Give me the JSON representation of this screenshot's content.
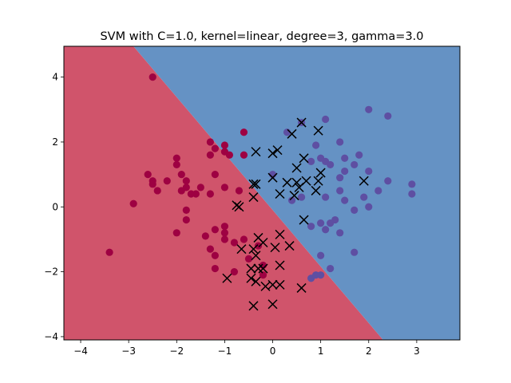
{
  "chart_data": {
    "type": "scatter",
    "title": "SVM with C=1.0, kernel=linear, degree=3, gamma=3.0",
    "xlabel": "",
    "ylabel": "",
    "xlim": [
      -4.35,
      3.9
    ],
    "ylim": [
      -4.1,
      4.95
    ],
    "xticks": [
      -4,
      -3,
      -2,
      -1,
      0,
      1,
      2,
      3
    ],
    "yticks": [
      -4,
      -2,
      0,
      2,
      4
    ],
    "grid": false,
    "colors": {
      "region_class0": "#d0546b",
      "region_class1": "#6592c4",
      "point_class0": "#9e0142",
      "point_class1": "#5e4fa2",
      "support_vector_marker": "#000000"
    },
    "decision_boundary": [
      [
        -2.9,
        4.95
      ],
      [
        2.3,
        -4.1
      ]
    ],
    "series": [
      {
        "class": 0,
        "points": [
          [
            -2.5,
            4.0
          ],
          [
            -0.6,
            2.3
          ],
          [
            -1.3,
            2.0
          ],
          [
            -1.2,
            1.8
          ],
          [
            -1.0,
            1.9
          ],
          [
            -1.0,
            1.7
          ],
          [
            -1.3,
            1.6
          ],
          [
            -0.9,
            1.6
          ],
          [
            -0.6,
            1.6
          ],
          [
            -2.0,
            1.5
          ],
          [
            -2.0,
            1.3
          ],
          [
            -2.6,
            1.0
          ],
          [
            -1.9,
            1.0
          ],
          [
            -1.2,
            1.0
          ],
          [
            -2.5,
            0.8
          ],
          [
            -2.2,
            0.8
          ],
          [
            -1.8,
            0.8
          ],
          [
            -1.8,
            0.6
          ],
          [
            -2.5,
            0.7
          ],
          [
            -2.4,
            0.5
          ],
          [
            -1.9,
            0.5
          ],
          [
            -1.7,
            0.4
          ],
          [
            -1.5,
            0.6
          ],
          [
            -1.3,
            0.4
          ],
          [
            -1.0,
            0.6
          ],
          [
            -1.6,
            0.4
          ],
          [
            -0.7,
            0.5
          ],
          [
            -2.9,
            0.1
          ],
          [
            -1.8,
            -0.1
          ],
          [
            -1.8,
            -0.4
          ],
          [
            -1.2,
            -0.7
          ],
          [
            -1.0,
            -0.6
          ],
          [
            -2.0,
            -0.8
          ],
          [
            -1.4,
            -0.9
          ],
          [
            -1.0,
            -0.8
          ],
          [
            -1.0,
            -1.0
          ],
          [
            -0.8,
            -1.1
          ],
          [
            -1.3,
            -1.3
          ],
          [
            -1.2,
            -1.5
          ],
          [
            -0.5,
            -1.6
          ],
          [
            -1.2,
            -1.9
          ],
          [
            -0.8,
            -2.0
          ],
          [
            -3.4,
            -1.4
          ],
          [
            -0.6,
            -1.0
          ],
          [
            -0.3,
            -1.2
          ],
          [
            -0.2,
            -1.8
          ],
          [
            -0.2,
            -2.1
          ]
        ]
      },
      {
        "class": 1,
        "points": [
          [
            0.6,
            2.6
          ],
          [
            0.3,
            2.3
          ],
          [
            1.1,
            2.7
          ],
          [
            1.4,
            2.0
          ],
          [
            0.9,
            1.9
          ],
          [
            2.0,
            3.0
          ],
          [
            2.4,
            2.8
          ],
          [
            0.8,
            1.4
          ],
          [
            1.0,
            1.5
          ],
          [
            1.1,
            1.4
          ],
          [
            1.2,
            1.3
          ],
          [
            1.5,
            1.5
          ],
          [
            1.7,
            1.3
          ],
          [
            1.8,
            1.6
          ],
          [
            2.0,
            1.1
          ],
          [
            1.5,
            1.1
          ],
          [
            2.4,
            0.8
          ],
          [
            2.9,
            0.7
          ],
          [
            2.9,
            0.4
          ],
          [
            1.4,
            0.9
          ],
          [
            1.4,
            0.5
          ],
          [
            2.2,
            0.5
          ],
          [
            1.9,
            0.3
          ],
          [
            1.1,
            0.3
          ],
          [
            1.5,
            0.2
          ],
          [
            2.0,
            0.0
          ],
          [
            1.7,
            -0.1
          ],
          [
            1.3,
            -0.4
          ],
          [
            1.0,
            -0.5
          ],
          [
            1.2,
            -0.5
          ],
          [
            0.8,
            -0.6
          ],
          [
            1.1,
            -0.7
          ],
          [
            1.4,
            -0.8
          ],
          [
            1.7,
            -1.4
          ],
          [
            1.0,
            -1.5
          ],
          [
            1.2,
            -1.9
          ],
          [
            0.8,
            -2.2
          ],
          [
            0.9,
            -2.1
          ],
          [
            1.0,
            -2.1
          ],
          [
            0.0,
            1.0
          ],
          [
            0.6,
            0.3
          ],
          [
            0.4,
            0.2
          ]
        ]
      }
    ],
    "support_vectors": [
      [
        0.6,
        2.6
      ],
      [
        0.95,
        2.35
      ],
      [
        0.4,
        2.25
      ],
      [
        -0.35,
        1.7
      ],
      [
        0.1,
        1.75
      ],
      [
        0.0,
        1.65
      ],
      [
        0.65,
        1.5
      ],
      [
        0.5,
        1.2
      ],
      [
        1.0,
        1.05
      ],
      [
        0.0,
        0.9
      ],
      [
        0.3,
        0.75
      ],
      [
        0.5,
        0.75
      ],
      [
        0.7,
        0.8
      ],
      [
        0.95,
        0.8
      ],
      [
        1.9,
        0.8
      ],
      [
        0.55,
        0.6
      ],
      [
        0.9,
        0.5
      ],
      [
        0.15,
        0.4
      ],
      [
        0.45,
        0.35
      ],
      [
        -0.4,
        0.7
      ],
      [
        -0.35,
        0.7
      ],
      [
        -0.4,
        0.3
      ],
      [
        -0.75,
        0.05
      ],
      [
        -0.7,
        0.0
      ],
      [
        0.65,
        -0.4
      ],
      [
        -0.3,
        -0.95
      ],
      [
        -0.2,
        -1.1
      ],
      [
        0.15,
        -0.85
      ],
      [
        -0.65,
        -1.3
      ],
      [
        -0.4,
        -1.3
      ],
      [
        -0.35,
        -1.5
      ],
      [
        0.05,
        -1.25
      ],
      [
        0.35,
        -1.2
      ],
      [
        0.15,
        -1.8
      ],
      [
        -0.45,
        -1.9
      ],
      [
        -0.3,
        -1.9
      ],
      [
        -0.2,
        -1.9
      ],
      [
        -0.95,
        -2.2
      ],
      [
        -0.45,
        -2.2
      ],
      [
        -0.35,
        -2.3
      ],
      [
        -0.15,
        -2.45
      ],
      [
        0.0,
        -2.4
      ],
      [
        0.15,
        -2.4
      ],
      [
        0.6,
        -2.5
      ],
      [
        -0.4,
        -3.05
      ],
      [
        0.0,
        -3.0
      ]
    ]
  }
}
